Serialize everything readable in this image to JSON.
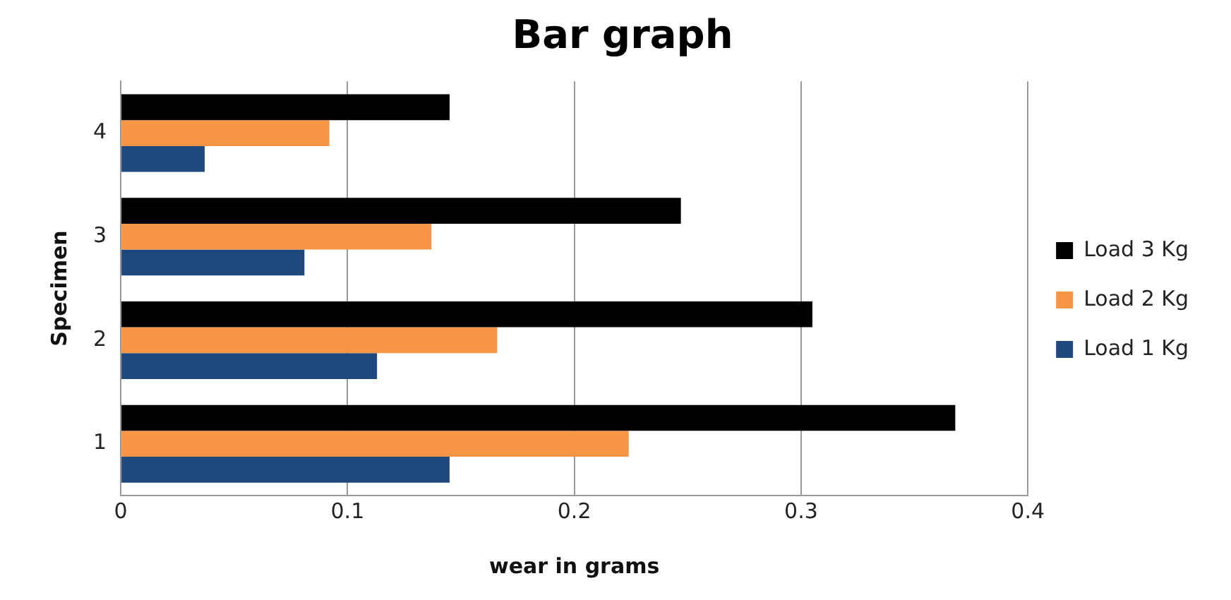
{
  "chart_data": {
    "type": "bar",
    "orientation": "horizontal",
    "title": "Bar graph",
    "xlabel": "wear in grams",
    "ylabel": "Specimen",
    "categories": [
      "4",
      "3",
      "2",
      "1"
    ],
    "series": [
      {
        "name": "Load 3 Kg",
        "color": "#000000",
        "values": [
          0.145,
          0.247,
          0.305,
          0.368
        ]
      },
      {
        "name": "Load 2 Kg",
        "color": "#f79646",
        "values": [
          0.092,
          0.137,
          0.166,
          0.224
        ]
      },
      {
        "name": "Load 1 Kg",
        "color": "#1f497d",
        "values": [
          0.037,
          0.081,
          0.113,
          0.145
        ]
      }
    ],
    "xlim": [
      0,
      0.4
    ],
    "xticks": [
      0,
      0.1,
      0.2,
      0.3,
      0.4
    ],
    "grid": "x",
    "legend": "right"
  }
}
